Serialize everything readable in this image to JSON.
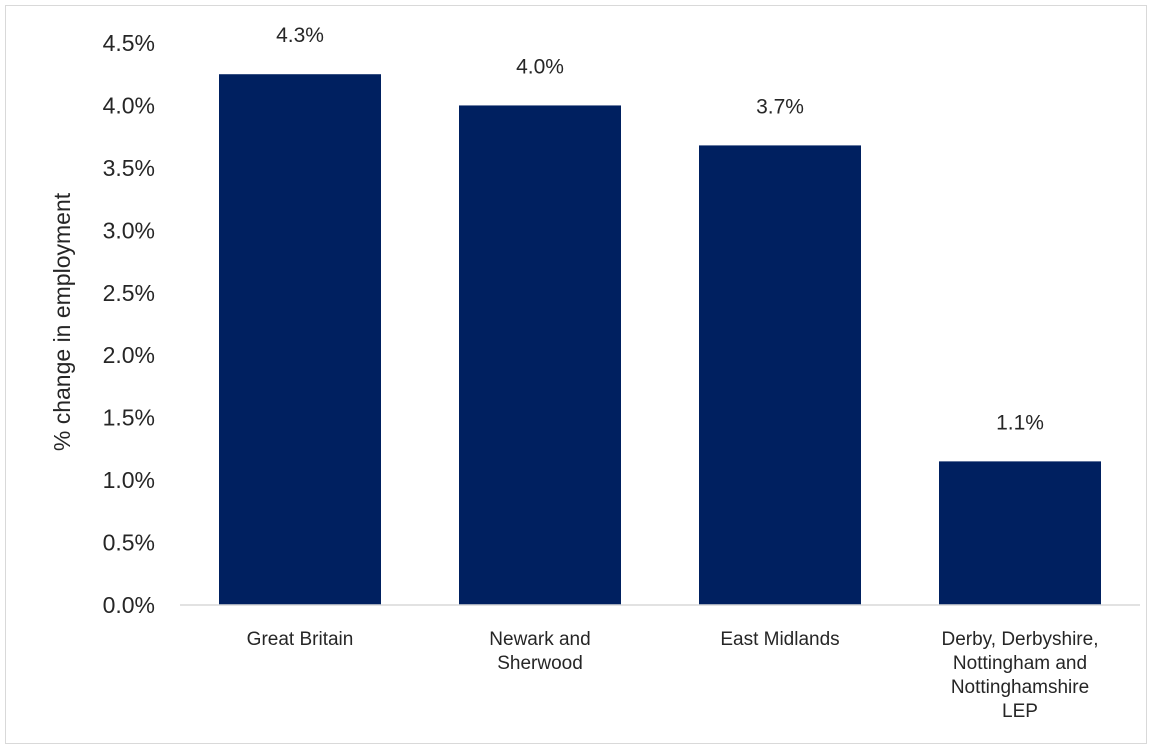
{
  "chart_data": {
    "type": "bar",
    "title": "",
    "xlabel": "",
    "ylabel": "% change in employment",
    "categories": [
      [
        "Great Britain"
      ],
      [
        "Newark and",
        "Sherwood"
      ],
      [
        "East Midlands"
      ],
      [
        "Derby, Derbyshire,",
        "Nottingham and",
        "Nottinghamshire",
        "LEP"
      ]
    ],
    "values": [
      4.25,
      4.0,
      3.68,
      1.15
    ],
    "data_labels": [
      "4.3%",
      "4.0%",
      "3.7%",
      "1.1%"
    ],
    "y_ticks": [
      "0.0%",
      "0.5%",
      "1.0%",
      "1.5%",
      "2.0%",
      "2.5%",
      "3.0%",
      "3.5%",
      "4.0%",
      "4.5%"
    ],
    "ylim": [
      0,
      4.5
    ],
    "grid": false,
    "legend": "none",
    "bar_color": "#002060"
  }
}
